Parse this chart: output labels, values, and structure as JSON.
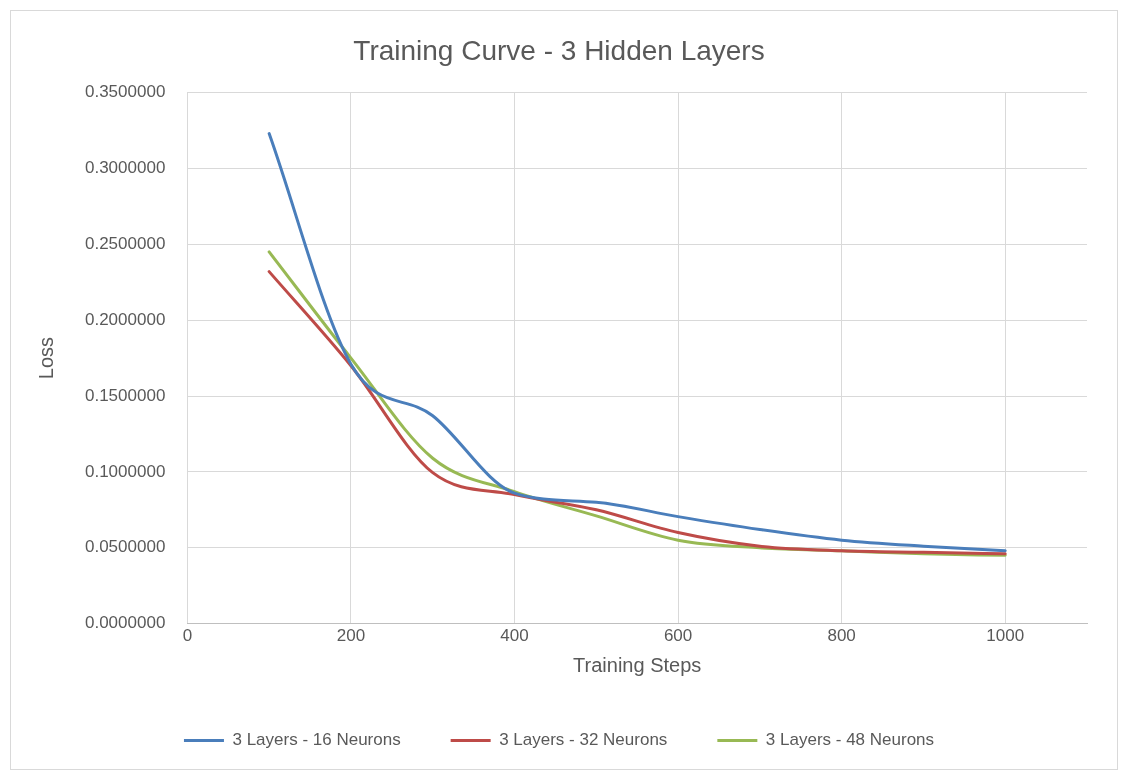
{
  "chart_data": {
    "type": "line",
    "title": "Training Curve - 3 Hidden Layers",
    "xlabel": "Training Steps",
    "ylabel": "Loss",
    "x": [
      100,
      200,
      300,
      400,
      500,
      600,
      700,
      800,
      900,
      1000
    ],
    "series": [
      {
        "name": "3 Layers - 16 Neurons",
        "color": "#4a7ebb",
        "values": [
          0.323,
          0.171,
          0.137,
          0.086,
          0.08,
          0.0705,
          0.062,
          0.055,
          0.051,
          0.048
        ]
      },
      {
        "name": "3 Layers - 32 Neurons",
        "color": "#be4b48",
        "values": [
          0.232,
          0.17,
          0.0995,
          0.085,
          0.075,
          0.06,
          0.051,
          0.048,
          0.047,
          0.046
        ]
      },
      {
        "name": "3 Layers - 48 Neurons",
        "color": "#98b954",
        "values": [
          0.245,
          0.175,
          0.109,
          0.087,
          0.071,
          0.055,
          0.05,
          0.048,
          0.046,
          0.045
        ]
      }
    ],
    "xlim": [
      0,
      1100
    ],
    "xticks": [
      0,
      200,
      400,
      600,
      800,
      1000
    ],
    "ylim": [
      0,
      0.35
    ],
    "yticks": [
      {
        "value": 0,
        "label": "0.0000000"
      },
      {
        "value": 0.05,
        "label": "0.0500000"
      },
      {
        "value": 0.1,
        "label": "0.1000000"
      },
      {
        "value": 0.15,
        "label": "0.1500000"
      },
      {
        "value": 0.2,
        "label": "0.2000000"
      },
      {
        "value": 0.25,
        "label": "0.2500000"
      },
      {
        "value": 0.3,
        "label": "0.3000000"
      },
      {
        "value": 0.35,
        "label": "0.3500000"
      }
    ],
    "grid": true,
    "legend": "bottom",
    "marker": "none",
    "line_style": "solid"
  }
}
